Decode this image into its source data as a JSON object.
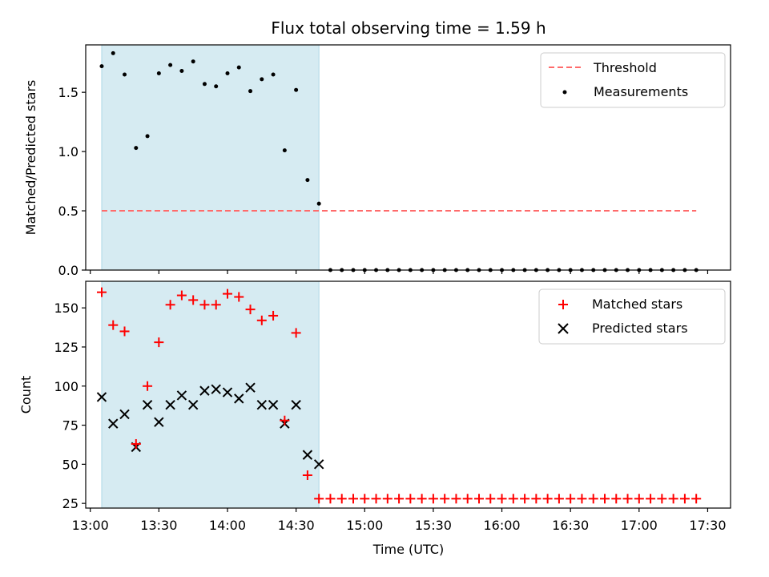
{
  "title": "Flux total observing time = 1.59 h",
  "xlabel": "Time (UTC)",
  "x_ticks": [
    "13:00",
    "13:30",
    "14:00",
    "14:30",
    "15:00",
    "15:30",
    "16:00",
    "16:30",
    "17:00",
    "17:30"
  ],
  "x_range_minutes": [
    778,
    1060
  ],
  "shaded_interval_minutes": [
    785,
    880
  ],
  "colors": {
    "shade": "#add8e6",
    "threshold": "#ff6b6b",
    "matched": "#ff0000",
    "predicted": "#000000",
    "measurement": "#000000"
  },
  "chart_data": [
    {
      "type": "scatter",
      "title": "Flux total observing time = 1.59 h",
      "ylabel": "Matched/Predicted stars",
      "ylim": [
        0,
        1.9
      ],
      "yticks": [
        "0.0",
        "0.5",
        "1.0",
        "1.5"
      ],
      "ytick_values": [
        0,
        0.5,
        1.0,
        1.5
      ],
      "legend": [
        "Threshold",
        "Measurements"
      ],
      "threshold": {
        "name": "Threshold",
        "value": 0.5,
        "x_start": 785,
        "x_end": 1045
      },
      "series": [
        {
          "name": "Measurements",
          "x": [
            785,
            790,
            795,
            800,
            805,
            810,
            815,
            820,
            825,
            830,
            835,
            840,
            845,
            850,
            855,
            860,
            865,
            870,
            875,
            880,
            885,
            890,
            895,
            900,
            905,
            910,
            915,
            920,
            925,
            930,
            935,
            940,
            945,
            950,
            955,
            960,
            965,
            970,
            975,
            980,
            985,
            990,
            995,
            1000,
            1005,
            1010,
            1015,
            1020,
            1025,
            1030,
            1035,
            1040,
            1045
          ],
          "values": [
            1.72,
            1.83,
            1.65,
            1.03,
            1.13,
            1.66,
            1.73,
            1.68,
            1.76,
            1.57,
            1.55,
            1.66,
            1.71,
            1.51,
            1.61,
            1.65,
            1.01,
            1.52,
            0.76,
            0.56,
            0,
            0,
            0,
            0,
            0,
            0,
            0,
            0,
            0,
            0,
            0,
            0,
            0,
            0,
            0,
            0,
            0,
            0,
            0,
            0,
            0,
            0,
            0,
            0,
            0,
            0,
            0,
            0,
            0,
            0,
            0,
            0,
            0
          ]
        }
      ]
    },
    {
      "type": "scatter",
      "ylabel": "Count",
      "xlabel": "Time (UTC)",
      "ylim": [
        22,
        167
      ],
      "yticks": [
        "25",
        "50",
        "75",
        "100",
        "125",
        "150"
      ],
      "ytick_values": [
        25,
        50,
        75,
        100,
        125,
        150
      ],
      "legend": [
        "Matched stars",
        "Predicted stars"
      ],
      "series": [
        {
          "name": "Matched stars",
          "x": [
            785,
            790,
            795,
            800,
            805,
            810,
            815,
            820,
            825,
            830,
            835,
            840,
            845,
            850,
            855,
            860,
            865,
            870,
            875,
            880,
            885,
            890,
            895,
            900,
            905,
            910,
            915,
            920,
            925,
            930,
            935,
            940,
            945,
            950,
            955,
            960,
            965,
            970,
            975,
            980,
            985,
            990,
            995,
            1000,
            1005,
            1010,
            1015,
            1020,
            1025,
            1030,
            1035,
            1040,
            1045
          ],
          "values": [
            160,
            139,
            135,
            63,
            100,
            128,
            152,
            158,
            155,
            152,
            152,
            159,
            157,
            149,
            142,
            145,
            78,
            134,
            43,
            28,
            28,
            28,
            28,
            28,
            28,
            28,
            28,
            28,
            28,
            28,
            28,
            28,
            28,
            28,
            28,
            28,
            28,
            28,
            28,
            28,
            28,
            28,
            28,
            28,
            28,
            28,
            28,
            28,
            28,
            28,
            28,
            28,
            28
          ]
        },
        {
          "name": "Predicted stars",
          "x": [
            785,
            790,
            795,
            800,
            805,
            810,
            815,
            820,
            825,
            830,
            835,
            840,
            845,
            850,
            855,
            860,
            865,
            870,
            875,
            880
          ],
          "values": [
            93,
            76,
            82,
            61,
            88,
            77,
            88,
            94,
            88,
            97,
            98,
            96,
            92,
            99,
            88,
            88,
            76,
            88,
            56,
            50
          ]
        }
      ]
    }
  ]
}
